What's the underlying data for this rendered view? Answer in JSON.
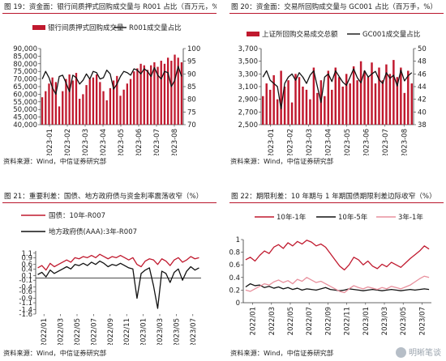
{
  "panels": [
    {
      "title": "图 19：资金面：银行间质押式回购成交量与 R001 占比（百万元，%）",
      "source": "资料来源：Wind，中信证券研究部"
    },
    {
      "title": "图 20：资金面：交易所回购成交量与 GC001 占比（百万手，%）",
      "source": "资料来源：Wind，中信证券研究部"
    },
    {
      "title": "图 21：重要利差：国债、地方政府债与资金利率震荡收窄（%）",
      "source": "资料来源：Wind，中信证券研究部"
    },
    {
      "title": "图 22：期限利差：10 年期与 1 年期国债期限利差边际收窄（%）",
      "source": "资料来源：Wind，中信证券研究部"
    }
  ],
  "watermark": {
    "icon": "wechat-icon",
    "text": "明晰笔谈"
  },
  "chart_data": [
    {
      "type": "bar",
      "title": "",
      "legend_placement": "top",
      "grid": false,
      "ylim": [
        40000,
        90000
      ],
      "yticks": [
        40000,
        45000,
        50000,
        55000,
        60000,
        65000,
        70000,
        75000,
        80000,
        85000,
        90000
      ],
      "ylim_right": [
        70,
        100
      ],
      "yticks_right": [
        70,
        75,
        80,
        85,
        90,
        95,
        100
      ],
      "x_tick_labels": [
        "2023-01",
        "2023-02",
        "2023-03",
        "2023-04",
        "2023-05",
        "2023-06",
        "2023-07",
        "2023-08"
      ],
      "series": [
        {
          "name": "银行间质押式回购成交量",
          "kind": "bar",
          "axis": "left",
          "color": "#c0192e",
          "values": [
            58000,
            62000,
            67000,
            71000,
            68000,
            52000,
            62000,
            70000,
            73000,
            69000,
            74000,
            57000,
            60000,
            66000,
            70000,
            71000,
            73000,
            68000,
            62000,
            56000,
            64000,
            69000,
            72000,
            59000,
            63000,
            67000,
            70000,
            75000,
            77000,
            80000,
            79000,
            76000,
            79000,
            81000,
            78000,
            82000,
            80000,
            84000,
            82000,
            86000,
            84000,
            81000
          ]
        },
        {
          "name": "R001成交量占比",
          "kind": "line",
          "axis": "right",
          "color": "#111111",
          "values": [
            88,
            91,
            88.5,
            84.5,
            82,
            89,
            89.5,
            86.5,
            83,
            89.5,
            88.5,
            86,
            87.5,
            90,
            88,
            91,
            90.5,
            88,
            88.5,
            91.5,
            90,
            84,
            86,
            89,
            91,
            90.5,
            89.5,
            92,
            91.5,
            90,
            92,
            91,
            89,
            92.5,
            89.5,
            88,
            91,
            90.5,
            85,
            87.5,
            93,
            89
          ]
        }
      ]
    },
    {
      "type": "bar",
      "title": "",
      "legend_placement": "top",
      "grid": false,
      "ylim": [
        2500,
        3700
      ],
      "yticks": [
        2500,
        2700,
        2900,
        3100,
        3300,
        3500,
        3700
      ],
      "ylim_right": [
        38,
        50
      ],
      "yticks_right": [
        38,
        40,
        42,
        44,
        46,
        48,
        50
      ],
      "x_tick_labels": [
        "2023-01",
        "2023-02",
        "2023-03",
        "2023-04",
        "2023-05",
        "2023-06",
        "2023-07",
        "2023-08"
      ],
      "series": [
        {
          "name": "上证所回购交易成交总额",
          "kind": "bar",
          "axis": "left",
          "color": "#c0192e",
          "values": [
            2950,
            3150,
            3050,
            3280,
            2900,
            3350,
            3100,
            3200,
            2850,
            3300,
            3250,
            3100,
            3050,
            2900,
            3400,
            3000,
            3200,
            2950,
            3350,
            3050,
            3400,
            3250,
            3100,
            3300,
            3150,
            3420,
            3200,
            3500,
            3350,
            3250,
            3480,
            3150,
            3400,
            3200,
            3450,
            3300,
            3520,
            3250,
            3400,
            3000,
            3350,
            3150
          ]
        },
        {
          "name": "GC001成交量占比",
          "kind": "line",
          "axis": "right",
          "color": "#111111",
          "values": [
            45.5,
            46.5,
            45,
            44.5,
            44,
            40.5,
            44.5,
            45.5,
            46,
            45,
            46.2,
            45.5,
            44.5,
            45.8,
            46.5,
            44,
            41.5,
            45.5,
            46,
            44.8,
            46.5,
            45.6,
            44.7,
            44.2,
            45.5,
            46.8,
            45.4,
            44.6,
            46.5,
            45.5,
            46,
            46.4,
            45.1,
            44.5,
            46.2,
            45.3,
            45.8,
            44.1,
            46.6,
            44.9,
            45.7,
            46.2
          ]
        }
      ]
    },
    {
      "type": "line",
      "title": "",
      "legend_placement": "top-left",
      "grid": false,
      "ylim": [
        -1.6,
        1.2
      ],
      "yticks": [
        -1.6,
        -1.4,
        -1.1,
        -0.9,
        -0.6,
        -0.4,
        -0.1,
        0.1,
        0.4,
        0.6,
        0.9,
        1.1
      ],
      "ytick_labels": [
        "-1.6",
        "-1.4",
        "-1.1",
        "-0.9",
        "-0.6",
        "-0.4",
        "-0.1",
        "0.1",
        "0.4",
        "0.6",
        "0.9",
        "1.1"
      ],
      "x_tick_labels": [
        "2022/01",
        "2022/03",
        "2022/05",
        "2022/07",
        "2022/09",
        "2022/11",
        "2023/01",
        "2023/03",
        "2023/05",
        "2023/07"
      ],
      "series": [
        {
          "name": "国债：10年-R007",
          "color": "#c0192e",
          "values": [
            0.45,
            0.55,
            0.35,
            0.65,
            0.5,
            0.6,
            0.7,
            0.8,
            0.7,
            0.9,
            0.85,
            0.95,
            0.9,
            1.0,
            0.9,
            1.05,
            0.95,
            0.85,
            0.95,
            0.9,
            1.0,
            0.9,
            0.8,
            0.9,
            0.6,
            0.5,
            0.75,
            0.85,
            0.8,
            0.6,
            0.85,
            0.75,
            0.55,
            0.8,
            0.9,
            0.7,
            0.8,
            0.95,
            0.85,
            0.9
          ]
        },
        {
          "name": "地方政府债(AAA):3年-R007",
          "color": "#111111",
          "values": [
            0.15,
            0.25,
            0.05,
            0.35,
            0.2,
            0.3,
            0.4,
            0.5,
            0.4,
            0.6,
            0.55,
            0.65,
            0.55,
            0.7,
            0.6,
            0.75,
            0.65,
            0.5,
            0.6,
            0.55,
            0.65,
            0.55,
            0.45,
            0.4,
            -0.9,
            0.2,
            0.35,
            0.45,
            -0.35,
            -1.35,
            0.3,
            0.2,
            -0.2,
            0.25,
            0.4,
            -0.1,
            0.3,
            0.5,
            0.35,
            0.45
          ]
        }
      ]
    },
    {
      "type": "line",
      "title": "",
      "legend_placement": "top",
      "grid": false,
      "ylim": [
        0,
        1
      ],
      "yticks": [
        0,
        0.2,
        0.4,
        0.6,
        0.8,
        1
      ],
      "ytick_labels": [
        "0",
        "0.2",
        "0.4",
        "0.6",
        "0.8",
        "1"
      ],
      "x_tick_labels": [
        "2022/01",
        "2022/03",
        "2022/05",
        "2022/07",
        "2022/09",
        "2022/11",
        "2023/01",
        "2023/03",
        "2023/05",
        "2023/07"
      ],
      "series": [
        {
          "name": "10年-1年",
          "color": "#c0192e",
          "values": [
            0.68,
            0.72,
            0.66,
            0.75,
            0.82,
            0.78,
            0.88,
            0.92,
            0.86,
            0.95,
            0.9,
            0.97,
            0.93,
            0.99,
            0.96,
            0.9,
            0.93,
            0.88,
            0.78,
            0.68,
            0.58,
            0.52,
            0.6,
            0.72,
            0.68,
            0.6,
            0.66,
            0.58,
            0.54,
            0.61,
            0.57,
            0.64,
            0.6,
            0.56,
            0.63,
            0.7,
            0.76,
            0.82,
            0.9,
            0.85
          ]
        },
        {
          "name": "10年-5年",
          "color": "#111111",
          "values": [
            0.25,
            0.3,
            0.27,
            0.28,
            0.24,
            0.26,
            0.23,
            0.25,
            0.22,
            0.24,
            0.21,
            0.23,
            0.2,
            0.22,
            0.21,
            0.2,
            0.22,
            0.24,
            0.21,
            0.2,
            0.19,
            0.2,
            0.22,
            0.21,
            0.2,
            0.19,
            0.2,
            0.21,
            0.2,
            0.19,
            0.2,
            0.21,
            0.2,
            0.19,
            0.2,
            0.21,
            0.2,
            0.21,
            0.22,
            0.21
          ]
        },
        {
          "name": "3年-1年",
          "color": "#e8909d",
          "values": [
            0.2,
            0.18,
            0.22,
            0.26,
            0.3,
            0.28,
            0.33,
            0.36,
            0.32,
            0.35,
            0.3,
            0.37,
            0.34,
            0.4,
            0.36,
            0.32,
            0.34,
            0.3,
            0.26,
            0.22,
            0.18,
            0.16,
            0.22,
            0.27,
            0.24,
            0.22,
            0.25,
            0.23,
            0.21,
            0.24,
            0.22,
            0.26,
            0.24,
            0.22,
            0.25,
            0.28,
            0.33,
            0.38,
            0.42,
            0.4
          ]
        }
      ]
    }
  ]
}
